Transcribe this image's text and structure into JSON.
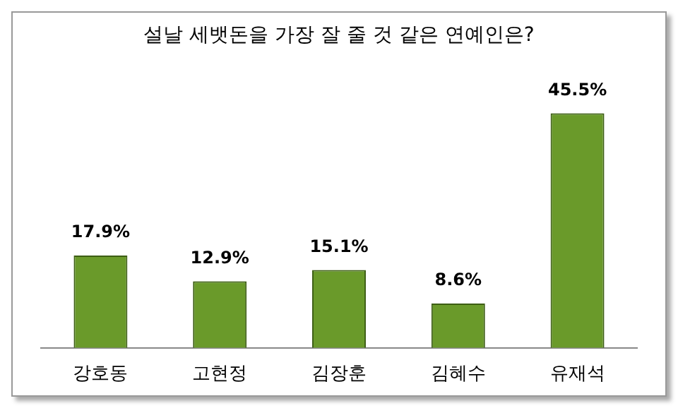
{
  "chart_data": {
    "type": "bar",
    "title": "설날 세뱃돈을 가장 잘 줄 것 같은 연예인은?",
    "categories": [
      "강호동",
      "고현정",
      "김장훈",
      "김혜수",
      "유재석"
    ],
    "values": [
      17.9,
      12.9,
      15.1,
      8.6,
      45.5
    ],
    "value_labels": [
      "17.9%",
      "12.9%",
      "15.1%",
      "8.6%",
      "45.5%"
    ],
    "color": "#6a9a2a",
    "legend": false,
    "grid": false
  }
}
